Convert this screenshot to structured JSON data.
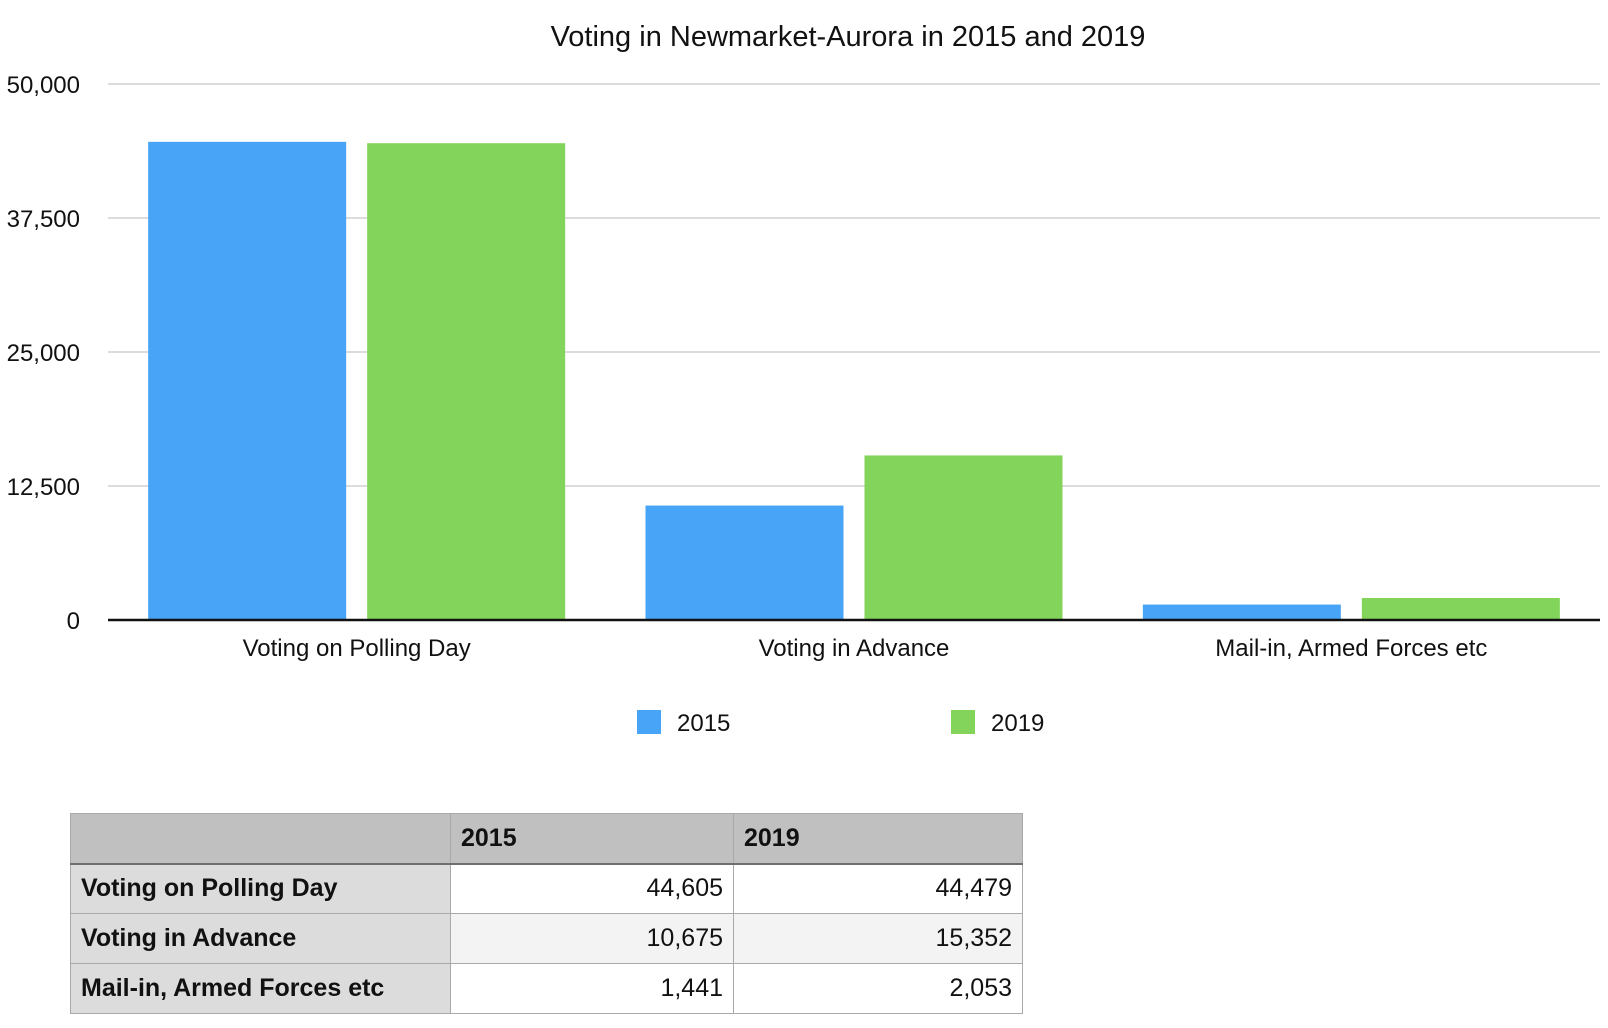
{
  "chart_data": {
    "type": "bar",
    "title": "Voting in Newmarket-Aurora in 2015 and 2019",
    "xlabel": "",
    "ylabel": "",
    "categories": [
      "Voting on Polling Day",
      "Voting in Advance",
      "Mail-in, Armed Forces etc"
    ],
    "series": [
      {
        "name": "2015",
        "values": [
          44605,
          10675,
          1441
        ],
        "color": "#48a4f7"
      },
      {
        "name": "2019",
        "values": [
          44479,
          15352,
          2053
        ],
        "color": "#82d55a"
      }
    ],
    "ylim": [
      0,
      50000
    ],
    "yticks": [
      0,
      12500,
      25000,
      37500,
      50000
    ],
    "ytick_labels": [
      "0",
      "12,500",
      "25,000",
      "37,500",
      "50,000"
    ],
    "grid": true,
    "legend_position": "bottom"
  },
  "table": {
    "headers": [
      "",
      "2015",
      "2019"
    ],
    "rows": [
      {
        "label": "Voting on Polling Day",
        "v2015": "44,605",
        "v2019": "44,479"
      },
      {
        "label": "Voting in Advance",
        "v2015": "10,675",
        "v2019": "15,352"
      },
      {
        "label": "Mail-in, Armed Forces etc",
        "v2015": "1,441",
        "v2019": "2,053"
      }
    ]
  }
}
